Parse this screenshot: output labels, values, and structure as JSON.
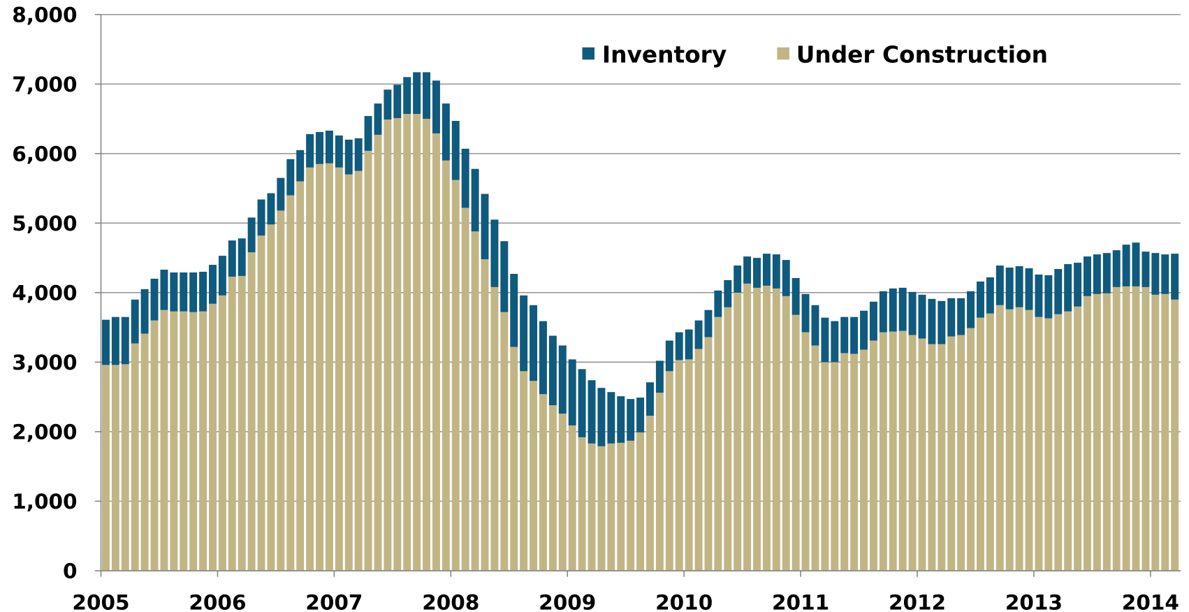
{
  "chart_data": {
    "type": "stacked_bar",
    "categories": [
      "2005",
      null,
      null,
      null,
      null,
      null,
      null,
      null,
      null,
      null,
      null,
      null,
      "2006",
      null,
      null,
      null,
      null,
      null,
      null,
      null,
      null,
      null,
      null,
      null,
      "2007",
      null,
      null,
      null,
      null,
      null,
      null,
      null,
      null,
      null,
      null,
      null,
      "2008",
      null,
      null,
      null,
      null,
      null,
      null,
      null,
      null,
      null,
      null,
      null,
      "2009",
      null,
      null,
      null,
      null,
      null,
      null,
      null,
      null,
      null,
      null,
      null,
      "2010",
      null,
      null,
      null,
      null,
      null,
      null,
      null,
      null,
      null,
      null,
      null,
      "2011",
      null,
      null,
      null,
      null,
      null,
      null,
      null,
      null,
      null,
      null,
      null,
      "2012",
      null,
      null,
      null,
      null,
      null,
      null,
      null,
      null,
      null,
      null,
      null,
      "2013",
      null,
      null,
      null,
      null,
      null,
      null,
      null,
      null,
      null,
      null,
      null,
      "2014",
      null,
      null
    ],
    "series": [
      {
        "name": "Inventory",
        "color": "#0f5a7d",
        "values": [
          650,
          690,
          680,
          630,
          640,
          600,
          580,
          560,
          560,
          570,
          570,
          560,
          570,
          520,
          540,
          500,
          520,
          450,
          470,
          520,
          450,
          480,
          460,
          470,
          460,
          500,
          470,
          500,
          450,
          430,
          480,
          530,
          600,
          670,
          760,
          820,
          850,
          850,
          900,
          940,
          970,
          1020,
          1050,
          1090,
          1090,
          1050,
          1000,
          980,
          950,
          980,
          910,
          840,
          740,
          670,
          600,
          500,
          480,
          460,
          440,
          400,
          430,
          410,
          390,
          380,
          390,
          390,
          390,
          430,
          460,
          490,
          520,
          530,
          550,
          580,
          640,
          590,
          520,
          530,
          560,
          560,
          590,
          620,
          620,
          620,
          630,
          650,
          620,
          550,
          530,
          530,
          520,
          520,
          570,
          600,
          590,
          600,
          610,
          620,
          650,
          680,
          630,
          570,
          570,
          580,
          530,
          600,
          630,
          510,
          600,
          570,
          660
        ]
      },
      {
        "name": "Under Construction",
        "color": "#c2b585",
        "values": [
          2960,
          2960,
          2970,
          3270,
          3410,
          3600,
          3750,
          3730,
          3730,
          3720,
          3730,
          3840,
          3960,
          4230,
          4240,
          4580,
          4820,
          4980,
          5180,
          5400,
          5600,
          5800,
          5850,
          5860,
          5800,
          5700,
          5750,
          6040,
          6270,
          6490,
          6510,
          6570,
          6570,
          6500,
          6290,
          5900,
          5620,
          5220,
          4880,
          4480,
          4080,
          3720,
          3220,
          2870,
          2730,
          2540,
          2380,
          2260,
          2090,
          1920,
          1830,
          1790,
          1830,
          1840,
          1870,
          1990,
          2230,
          2560,
          2870,
          3030,
          3040,
          3190,
          3360,
          3650,
          3790,
          4000,
          4130,
          4070,
          4100,
          4060,
          3950,
          3680,
          3430,
          3240,
          3000,
          3000,
          3130,
          3120,
          3180,
          3310,
          3430,
          3440,
          3450,
          3390,
          3340,
          3260,
          3260,
          3370,
          3390,
          3490,
          3640,
          3700,
          3820,
          3760,
          3790,
          3750,
          3650,
          3630,
          3690,
          3730,
          3800,
          3950,
          3980,
          3990,
          4080,
          4090,
          4090,
          4080,
          3970,
          3980,
          3900
        ]
      }
    ],
    "ylim": [
      0,
      8000
    ],
    "yticks": [
      0,
      {
        "value": 1000,
        "label": "1,000"
      },
      {
        "value": 2000,
        "label": "2,000"
      },
      {
        "value": 3000,
        "label": "3,000"
      },
      {
        "value": 4000,
        "label": "4,000"
      },
      {
        "value": 5000,
        "label": "5,000"
      },
      {
        "value": 6000,
        "label": "6,000"
      },
      {
        "value": 7000,
        "label": "7,000"
      },
      {
        "value": 8000,
        "label": "8,000"
      }
    ],
    "grid": true,
    "legend": "top-right"
  }
}
